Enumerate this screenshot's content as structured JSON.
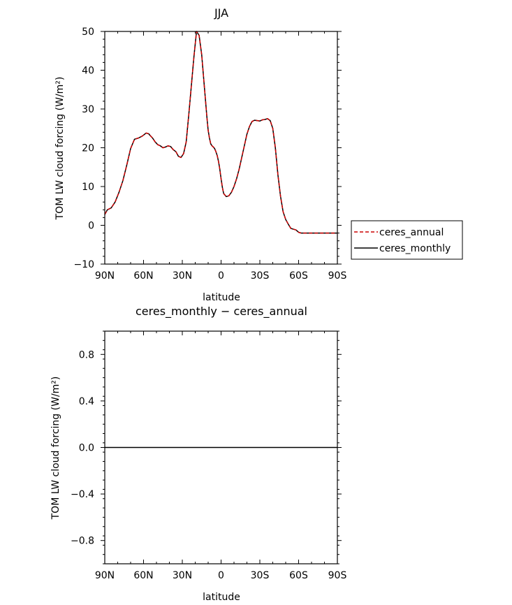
{
  "chart_data": [
    {
      "type": "line",
      "title": "JJA",
      "xlabel": "latitude",
      "ylabel": "TOM LW cloud forcing (W/m²)",
      "xlim": [
        90,
        -90
      ],
      "ylim": [
        -10,
        50
      ],
      "xticks": [
        90,
        60,
        30,
        0,
        -30,
        -60,
        -90
      ],
      "xtick_labels": [
        "90N",
        "60N",
        "30N",
        "0",
        "30S",
        "60S",
        "90S"
      ],
      "yticks": [
        -10,
        0,
        10,
        20,
        30,
        40,
        50
      ],
      "ytick_labels": [
        "−10",
        "0",
        "10",
        "20",
        "30",
        "40",
        "50"
      ],
      "grid": false,
      "legend_position": "right",
      "x": [
        90,
        88,
        85,
        82,
        79,
        76,
        73,
        70,
        67,
        64,
        61,
        58,
        56,
        55,
        53,
        51,
        49,
        47,
        45,
        43,
        41,
        39,
        37,
        35,
        33,
        31,
        29,
        27,
        25,
        23,
        21,
        19,
        17,
        15,
        13,
        11,
        10,
        9,
        8,
        7,
        6,
        5,
        4,
        3,
        2,
        1,
        0,
        -1,
        -2,
        -4,
        -6,
        -8,
        -10,
        -12,
        -14,
        -16,
        -18,
        -20,
        -22,
        -24,
        -26,
        -28,
        -30,
        -32,
        -34,
        -36,
        -38,
        -40,
        -42,
        -44,
        -46,
        -48,
        -50,
        -52,
        -54,
        -56,
        -58,
        -60,
        -62,
        -64,
        -66,
        -68,
        -70,
        -72,
        -74,
        -76,
        -78,
        -80,
        -82,
        -84,
        -86,
        -88,
        -90
      ],
      "series": [
        {
          "name": "ceres_annual",
          "color": "#cc0000",
          "dash": "dashed",
          "values": [
            2.8,
            4.0,
            4.5,
            6.0,
            8.5,
            11.5,
            15.5,
            19.8,
            22.2,
            22.5,
            23.0,
            23.8,
            23.6,
            23.2,
            22.5,
            21.5,
            20.8,
            20.5,
            20.0,
            20.2,
            20.5,
            20.3,
            19.5,
            19.0,
            17.8,
            17.5,
            18.5,
            21.5,
            28.5,
            36.0,
            43.5,
            50.0,
            49.0,
            44.0,
            36.0,
            28.0,
            24.5,
            22.5,
            21.0,
            20.5,
            20.2,
            19.8,
            19.0,
            18.0,
            16.5,
            14.5,
            12.0,
            9.8,
            8.2,
            7.4,
            7.6,
            8.5,
            10.0,
            12.0,
            14.5,
            17.5,
            20.5,
            23.5,
            25.5,
            26.8,
            27.1,
            27.0,
            26.9,
            27.2,
            27.3,
            27.5,
            27.0,
            25.0,
            20.0,
            13.0,
            7.5,
            3.5,
            1.5,
            0.3,
            -0.8,
            -1.0,
            -1.2,
            -1.8,
            -2.0,
            -2.0,
            -2.0,
            -2.0,
            -2.0,
            -2.0,
            -2.0,
            -2.0,
            -2.0,
            -2.0,
            -2.0,
            -2.0,
            -2.0,
            -2.0,
            -2.0
          ]
        },
        {
          "name": "ceres_monthly",
          "color": "#000000",
          "dash": "solid",
          "values": [
            2.8,
            4.0,
            4.5,
            6.0,
            8.5,
            11.5,
            15.5,
            19.8,
            22.2,
            22.5,
            23.0,
            23.8,
            23.6,
            23.2,
            22.5,
            21.5,
            20.8,
            20.5,
            20.0,
            20.2,
            20.5,
            20.3,
            19.5,
            19.0,
            17.8,
            17.5,
            18.5,
            21.5,
            28.5,
            36.0,
            43.5,
            50.0,
            49.0,
            44.0,
            36.0,
            28.0,
            24.5,
            22.5,
            21.0,
            20.5,
            20.2,
            19.8,
            19.0,
            18.0,
            16.5,
            14.5,
            12.0,
            9.8,
            8.2,
            7.4,
            7.6,
            8.5,
            10.0,
            12.0,
            14.5,
            17.5,
            20.5,
            23.5,
            25.5,
            26.8,
            27.1,
            27.0,
            26.9,
            27.2,
            27.3,
            27.5,
            27.0,
            25.0,
            20.0,
            13.0,
            7.5,
            3.5,
            1.5,
            0.3,
            -0.8,
            -1.0,
            -1.2,
            -1.8,
            -2.0,
            -2.0,
            -2.0,
            -2.0,
            -2.0,
            -2.0,
            -2.0,
            -2.0,
            -2.0,
            -2.0,
            -2.0,
            -2.0,
            -2.0,
            -2.0,
            -2.0
          ]
        }
      ]
    },
    {
      "type": "line",
      "title": "ceres_monthly − ceres_annual",
      "xlabel": "latitude",
      "ylabel": "TOM LW cloud forcing (W/m²)",
      "xlim": [
        90,
        -90
      ],
      "ylim": [
        -1.0,
        1.0
      ],
      "xticks": [
        90,
        60,
        30,
        0,
        -30,
        -60,
        -90
      ],
      "xtick_labels": [
        "90N",
        "60N",
        "30N",
        "0",
        "30S",
        "60S",
        "90S"
      ],
      "yticks": [
        -0.8,
        -0.4,
        0.0,
        0.4,
        0.8
      ],
      "ytick_labels": [
        "−0.8",
        "−0.4",
        "0.0",
        "0.4",
        "0.8"
      ],
      "grid": false,
      "x": [
        90,
        -90
      ],
      "series": [
        {
          "color": "#000000",
          "dash": "solid",
          "values": [
            0.0,
            0.0
          ]
        }
      ]
    }
  ]
}
